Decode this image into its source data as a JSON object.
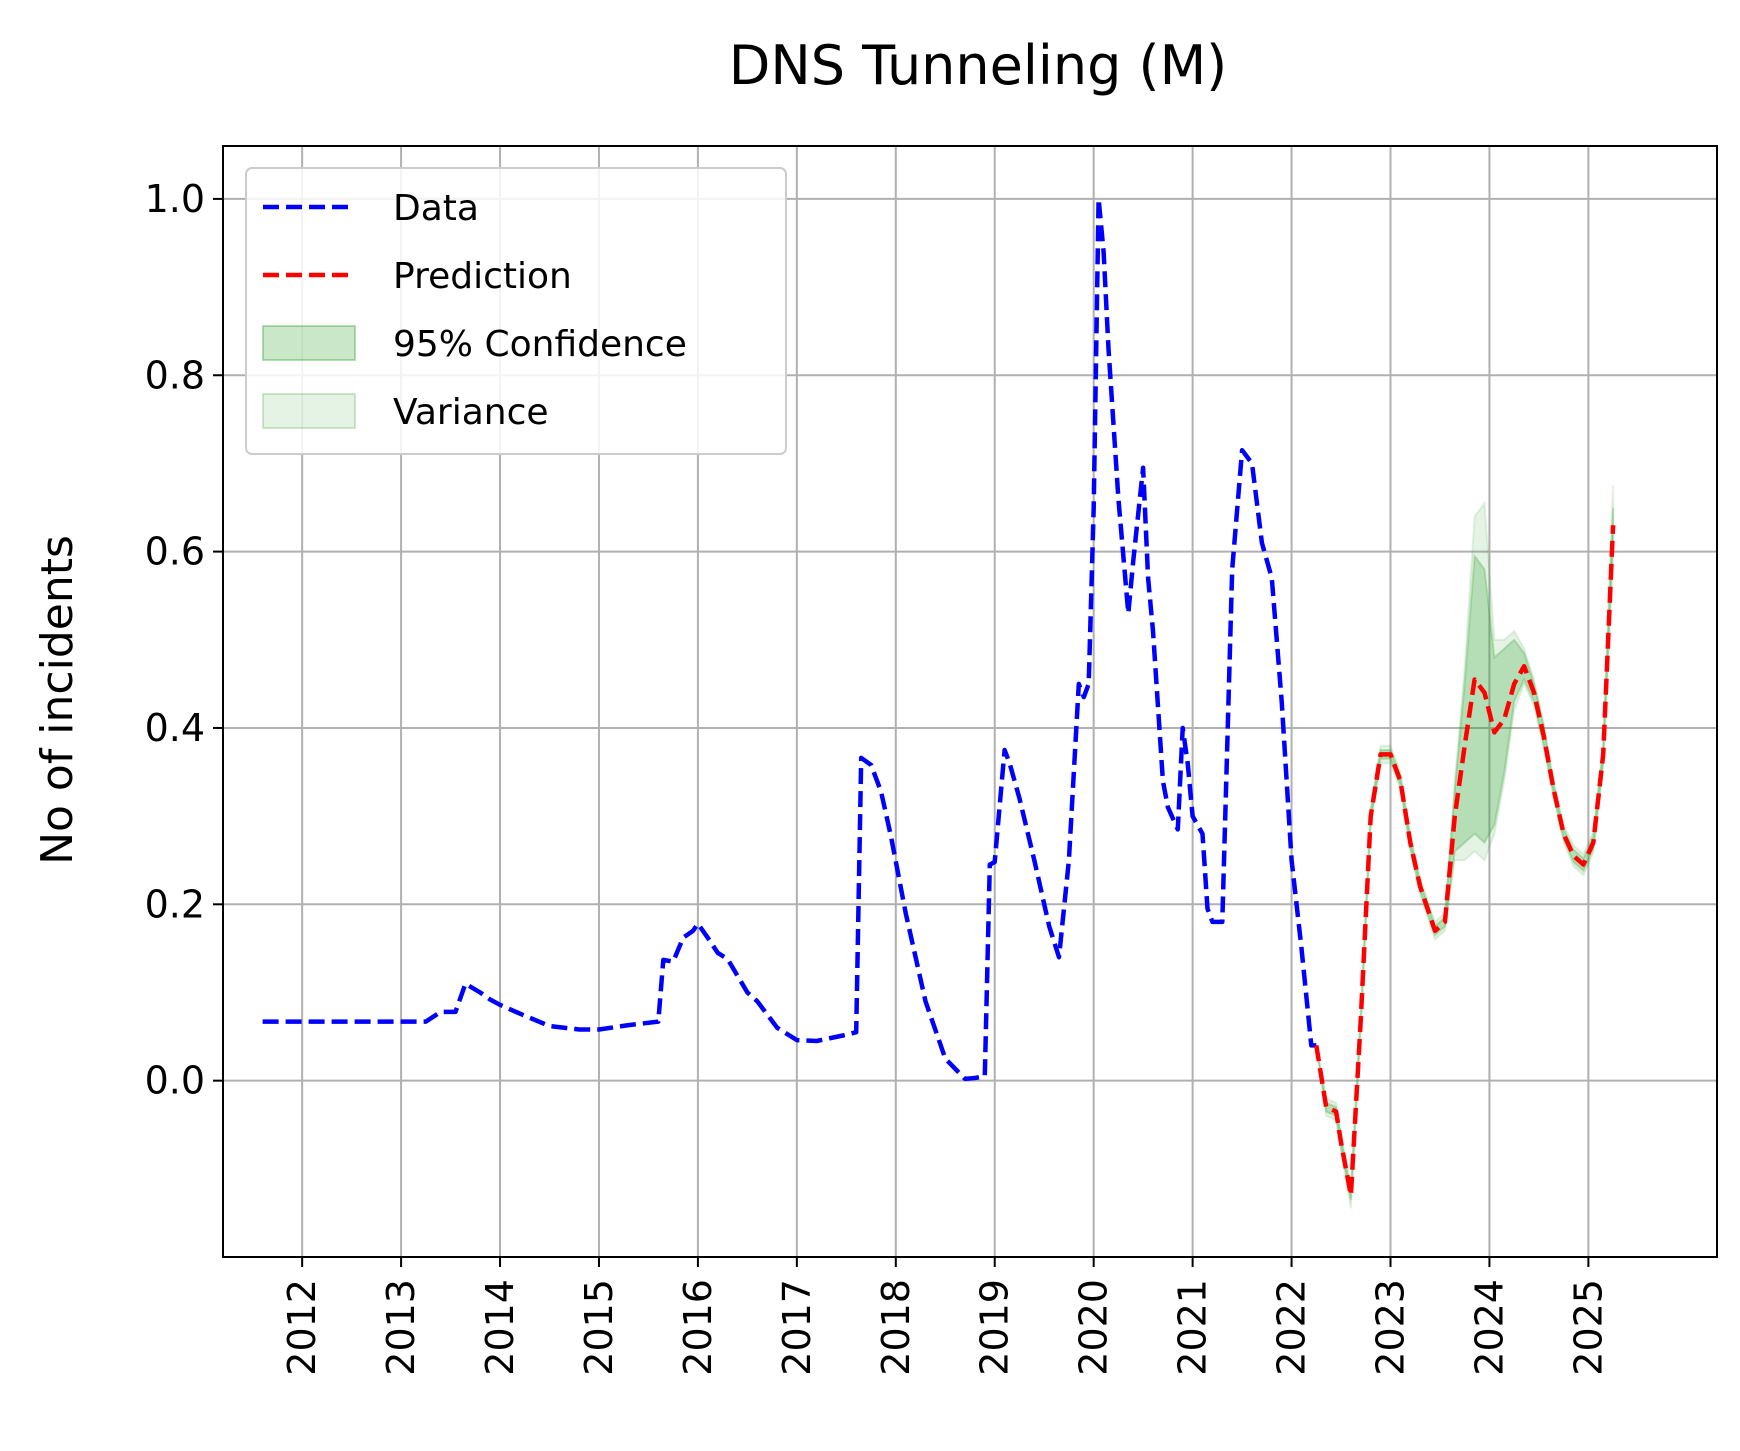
{
  "chart_data": {
    "type": "line",
    "title": "DNS Tunneling (M)",
    "xlabel": "",
    "ylabel": "No of incidents",
    "xlim": [
      2011.2,
      2026.3
    ],
    "ylim": [
      -0.2,
      1.06
    ],
    "x_ticks": [
      "2012",
      "2013",
      "2014",
      "2015",
      "2016",
      "2017",
      "2018",
      "2019",
      "2020",
      "2021",
      "2022",
      "2023",
      "2024",
      "2025"
    ],
    "y_ticks": [
      "0.0",
      "0.2",
      "0.4",
      "0.6",
      "0.8",
      "1.0"
    ],
    "grid": true,
    "legend_position": "top-left",
    "colors": {
      "data": "#0000ff",
      "prediction": "#ff0000",
      "confidence": "#2ca02c",
      "variance": "#2ca02c"
    },
    "series": [
      {
        "name": "Data",
        "style": "dashed",
        "x": [
          2011.6,
          2012.0,
          2012.5,
          2013.0,
          2013.25,
          2013.4,
          2013.55,
          2013.65,
          2013.8,
          2013.9,
          2014.0,
          2014.2,
          2014.5,
          2014.8,
          2015.0,
          2015.3,
          2015.6,
          2015.65,
          2015.75,
          2015.85,
          2015.95,
          2016.0,
          2016.1,
          2016.2,
          2016.3,
          2016.5,
          2016.6,
          2016.8,
          2017.0,
          2017.2,
          2017.5,
          2017.6,
          2017.65,
          2017.75,
          2017.85,
          2017.95,
          2018.1,
          2018.3,
          2018.5,
          2018.7,
          2018.8,
          2018.9,
          2018.95,
          2019.0,
          2019.1,
          2019.15,
          2019.25,
          2019.4,
          2019.55,
          2019.65,
          2019.75,
          2019.85,
          2019.9,
          2019.95,
          2020.0,
          2020.05,
          2020.1,
          2020.15,
          2020.25,
          2020.35,
          2020.4,
          2020.5,
          2020.55,
          2020.6,
          2020.7,
          2020.75,
          2020.85,
          2020.9,
          2020.95,
          2021.0,
          2021.1,
          2021.15,
          2021.2,
          2021.3,
          2021.4,
          2021.5,
          2021.6,
          2021.7,
          2021.8,
          2021.9,
          2022.0,
          2022.1,
          2022.2,
          2022.25
        ],
        "y": [
          0.067,
          0.067,
          0.067,
          0.067,
          0.067,
          0.078,
          0.078,
          0.11,
          0.1,
          0.092,
          0.086,
          0.076,
          0.062,
          0.058,
          0.058,
          0.063,
          0.067,
          0.137,
          0.135,
          0.162,
          0.17,
          0.178,
          0.162,
          0.145,
          0.138,
          0.1,
          0.09,
          0.06,
          0.046,
          0.045,
          0.052,
          0.055,
          0.366,
          0.358,
          0.328,
          0.278,
          0.19,
          0.09,
          0.025,
          0.002,
          0.003,
          0.005,
          0.245,
          0.248,
          0.375,
          0.36,
          0.32,
          0.25,
          0.175,
          0.14,
          0.25,
          0.45,
          0.435,
          0.45,
          0.65,
          1.0,
          0.94,
          0.83,
          0.66,
          0.53,
          0.59,
          0.695,
          0.57,
          0.51,
          0.34,
          0.31,
          0.285,
          0.4,
          0.36,
          0.3,
          0.28,
          0.195,
          0.18,
          0.18,
          0.58,
          0.715,
          0.7,
          0.61,
          0.57,
          0.43,
          0.25,
          0.15,
          0.04,
          0.04
        ]
      },
      {
        "name": "Prediction",
        "style": "dashed",
        "x": [
          2022.25,
          2022.35,
          2022.45,
          2022.5,
          2022.6,
          2022.7,
          2022.8,
          2022.9,
          2023.0,
          2023.1,
          2023.2,
          2023.3,
          2023.45,
          2023.55,
          2023.65,
          2023.75,
          2023.85,
          2023.95,
          2024.05,
          2024.15,
          2024.25,
          2024.35,
          2024.45,
          2024.55,
          2024.65,
          2024.75,
          2024.85,
          2024.95,
          2025.05,
          2025.15,
          2025.25
        ],
        "y": [
          0.04,
          -0.03,
          -0.035,
          -0.07,
          -0.13,
          0.07,
          0.3,
          0.37,
          0.37,
          0.34,
          0.27,
          0.22,
          0.17,
          0.18,
          0.3,
          0.38,
          0.455,
          0.44,
          0.395,
          0.41,
          0.45,
          0.47,
          0.44,
          0.39,
          0.33,
          0.28,
          0.255,
          0.245,
          0.27,
          0.37,
          0.63
        ],
        "ci_lower": [
          0.04,
          -0.035,
          -0.04,
          -0.075,
          -0.135,
          0.065,
          0.295,
          0.365,
          0.365,
          0.335,
          0.265,
          0.215,
          0.165,
          0.175,
          0.26,
          0.27,
          0.28,
          0.27,
          0.29,
          0.35,
          0.43,
          0.455,
          0.43,
          0.38,
          0.325,
          0.275,
          0.248,
          0.238,
          0.263,
          0.362,
          0.61
        ],
        "ci_upper": [
          0.04,
          -0.025,
          -0.03,
          -0.065,
          -0.125,
          0.075,
          0.305,
          0.375,
          0.375,
          0.345,
          0.275,
          0.225,
          0.175,
          0.185,
          0.33,
          0.45,
          0.595,
          0.58,
          0.48,
          0.49,
          0.5,
          0.485,
          0.45,
          0.4,
          0.335,
          0.285,
          0.262,
          0.252,
          0.277,
          0.378,
          0.65
        ],
        "var_lower": [
          0.04,
          -0.04,
          -0.045,
          -0.08,
          -0.145,
          0.06,
          0.29,
          0.36,
          0.36,
          0.33,
          0.26,
          0.21,
          0.16,
          0.17,
          0.25,
          0.25,
          0.26,
          0.25,
          0.28,
          0.34,
          0.42,
          0.45,
          0.425,
          0.375,
          0.32,
          0.27,
          0.243,
          0.233,
          0.258,
          0.357,
          0.6
        ],
        "var_upper": [
          0.04,
          -0.02,
          -0.025,
          -0.06,
          -0.12,
          0.08,
          0.31,
          0.38,
          0.38,
          0.35,
          0.28,
          0.23,
          0.18,
          0.19,
          0.34,
          0.47,
          0.64,
          0.655,
          0.5,
          0.5,
          0.51,
          0.49,
          0.455,
          0.405,
          0.34,
          0.29,
          0.267,
          0.257,
          0.282,
          0.383,
          0.675
        ]
      }
    ],
    "legend": [
      {
        "label": "Data",
        "kind": "dashed-line",
        "color": "#0000ff"
      },
      {
        "label": "Prediction",
        "kind": "dashed-line",
        "color": "#ff0000"
      },
      {
        "label": "95% Confidence",
        "kind": "fill",
        "color": "#2ca02c"
      },
      {
        "label": "Variance",
        "kind": "fill-light",
        "color": "#2ca02c"
      }
    ]
  }
}
